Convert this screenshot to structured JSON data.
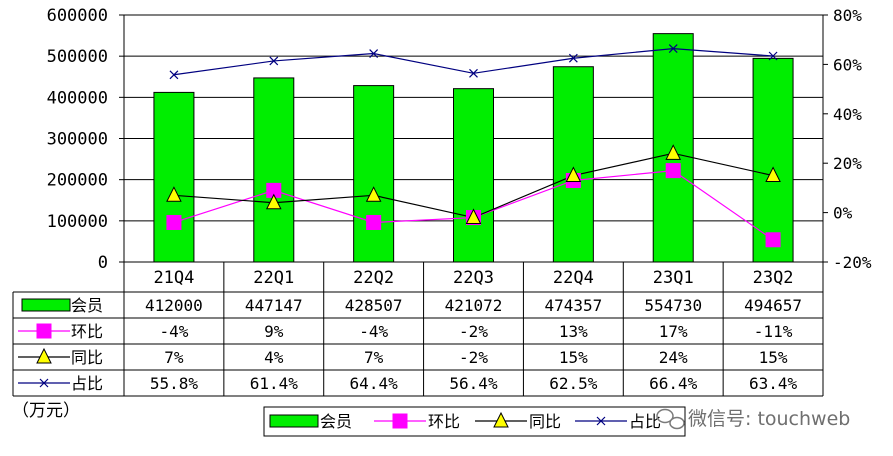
{
  "chart_data": {
    "type": "bar",
    "unit_label": "（万元）",
    "categories": [
      "21Q4",
      "22Q1",
      "22Q2",
      "22Q3",
      "22Q4",
      "23Q1",
      "23Q2"
    ],
    "left_axis": {
      "min": 0,
      "max": 600000,
      "ticks": [
        "0",
        "100000",
        "200000",
        "300000",
        "400000",
        "500000",
        "600000"
      ]
    },
    "right_axis": {
      "min": -20,
      "max": 80,
      "ticks": [
        "-20%",
        "0%",
        "20%",
        "40%",
        "60%",
        "80%"
      ]
    },
    "series": [
      {
        "name": "会员",
        "type": "bar",
        "axis": "left",
        "color": "#00ee00",
        "values": [
          412000,
          447147,
          428507,
          421072,
          474357,
          554730,
          494657
        ],
        "labels": [
          "412000",
          "447147",
          "428507",
          "421072",
          "474357",
          "554730",
          "494657"
        ]
      },
      {
        "name": "环比",
        "type": "line",
        "axis": "right",
        "color": "#ff00ff",
        "marker": "square",
        "values": [
          -4,
          9,
          -4,
          -2,
          13,
          17,
          -11
        ],
        "labels": [
          "-4%",
          "9%",
          "-4%",
          "-2%",
          "13%",
          "17%",
          "-11%"
        ]
      },
      {
        "name": "同比",
        "type": "line",
        "axis": "right",
        "color": "#000000",
        "marker": "triangle",
        "marker_color": "#ffff00",
        "values": [
          7,
          4,
          7,
          -2,
          15,
          24,
          15
        ],
        "labels": [
          "7%",
          "4%",
          "7%",
          "-2%",
          "15%",
          "24%",
          "15%"
        ]
      },
      {
        "name": "占比",
        "type": "line",
        "axis": "right",
        "color": "#000080",
        "marker": "x",
        "values": [
          55.8,
          61.4,
          64.4,
          56.4,
          62.5,
          66.4,
          63.4
        ],
        "labels": [
          "55.8%",
          "61.4%",
          "64.4%",
          "56.4%",
          "62.5%",
          "66.4%",
          "63.4%"
        ]
      }
    ],
    "legend": {
      "position": "bottom",
      "items": [
        "会员",
        "环比",
        "同比",
        "占比"
      ]
    },
    "watermark": "微信号: touchweb"
  }
}
